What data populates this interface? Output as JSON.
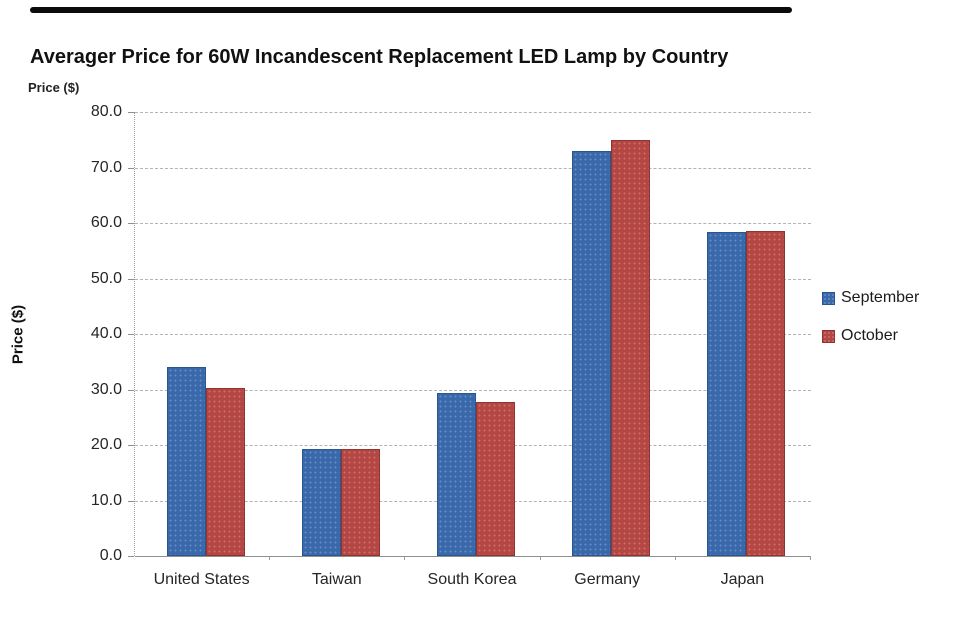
{
  "page": {
    "background": "#ffffff",
    "top_bar_color": "#0b0b0b"
  },
  "chart_data": {
    "type": "bar",
    "title": "Averager Price for 60W Incandescent Replacement LED Lamp by Country",
    "axis_unit_label": "Price ($)",
    "ylabel": "Price ($)",
    "xlabel": "",
    "categories": [
      "United States",
      "Taiwan",
      "South Korea",
      "Germany",
      "Japan"
    ],
    "series": [
      {
        "name": "September",
        "color": "#3e70b6",
        "border_color": "#29568f",
        "values": [
          34.0,
          19.2,
          29.4,
          73.0,
          58.3
        ]
      },
      {
        "name": "October",
        "color": "#bf4b47",
        "border_color": "#8e3431",
        "values": [
          30.3,
          19.2,
          27.8,
          75.0,
          58.5
        ]
      }
    ],
    "ylim": [
      0,
      80
    ],
    "ytick_step": 10,
    "ytick_labels": [
      "0.0",
      "10.0",
      "20.0",
      "30.0",
      "40.0",
      "50.0",
      "60.0",
      "70.0",
      "80.0"
    ],
    "grid": "horizontal-dashed",
    "legend_position": "right"
  }
}
